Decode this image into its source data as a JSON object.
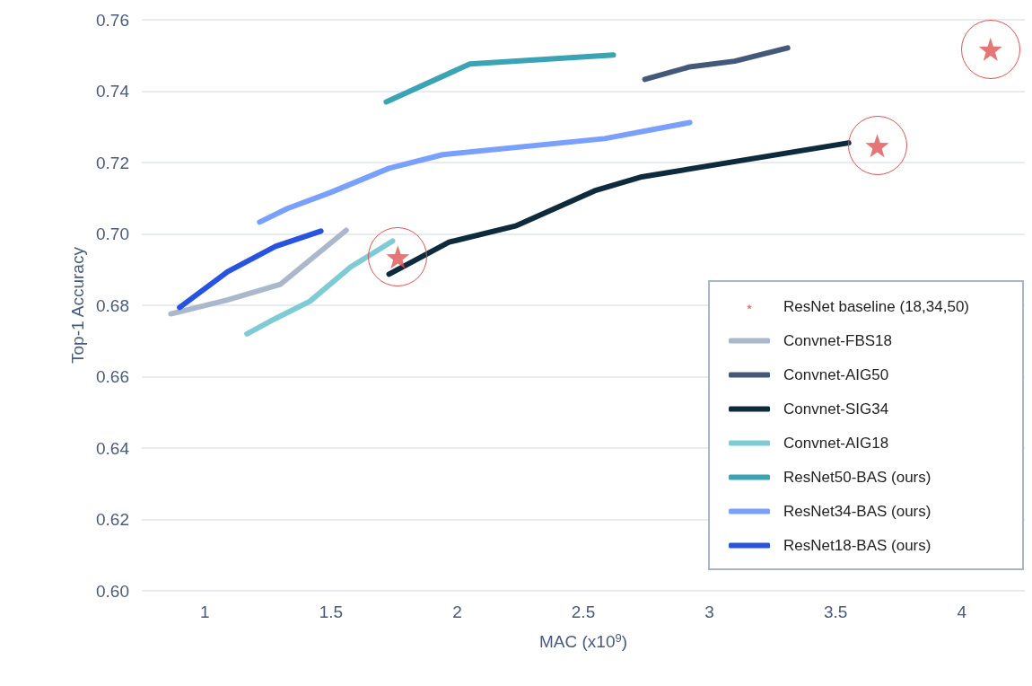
{
  "chart_data": {
    "type": "line",
    "xlabel": "MAC (x10$^{9}$)",
    "ylabel": "Top-1 Accuracy",
    "xlim": [
      0.75,
      4.25
    ],
    "xticks": [
      1,
      1.5,
      2,
      2.5,
      3,
      3.5,
      4
    ],
    "ylim": [
      0.6,
      0.76
    ],
    "yticks": [
      {
        "value": 0.6,
        "label": "0.60"
      },
      {
        "value": 0.62,
        "label": "0.62"
      },
      {
        "value": 0.64,
        "label": "0.64"
      },
      {
        "value": 0.66,
        "label": "0.66"
      },
      {
        "value": 0.68,
        "label": "0.68"
      },
      {
        "value": 0.7,
        "label": "0.70"
      },
      {
        "value": 0.72,
        "label": "0.72"
      },
      {
        "value": 0.74,
        "label": "0.74"
      },
      {
        "value": 0.76,
        "label": "0.76"
      }
    ],
    "grid": "y",
    "legend": "bottom right",
    "marker": "none",
    "line_style": "solid",
    "series": [
      {
        "name": "ResNet baseline (18,34,50)",
        "type": "scatter",
        "marker": "star",
        "color": "#e05252",
        "x": [
          1.765,
          3.665,
          4.114
        ],
        "values": [
          0.6935,
          0.7247,
          0.7517
        ]
      },
      {
        "name": "Convnet-FBS18",
        "color": "#abb8cc",
        "x": [
          0.865,
          1.085,
          1.3,
          1.56
        ],
        "values": [
          0.6776,
          0.6814,
          0.6859,
          0.701
        ]
      },
      {
        "name": "Convnet-AIG50",
        "color": "#44587a",
        "x": [
          2.744,
          2.922,
          3.1,
          3.31
        ],
        "values": [
          0.7433,
          0.7468,
          0.7484,
          0.7521
        ]
      },
      {
        "name": "Convnet-SIG34",
        "color": "#0e2a3d",
        "x": [
          1.73,
          1.968,
          2.235,
          2.545,
          2.726,
          3.552
        ],
        "values": [
          0.6887,
          0.6977,
          0.7023,
          0.7121,
          0.7159,
          0.7255
        ]
      },
      {
        "name": "Convnet-AIG18",
        "color": "#7fcbd4",
        "x": [
          1.167,
          1.28,
          1.416,
          1.577,
          1.744
        ],
        "values": [
          0.672,
          0.6763,
          0.6811,
          0.6907,
          0.698
        ]
      },
      {
        "name": "ResNet50-BAS (ours)",
        "color": "#3aa4b4",
        "x": [
          1.719,
          2.05,
          2.619
        ],
        "values": [
          0.737,
          0.7476,
          0.7501
        ]
      },
      {
        "name": "ResNet34-BAS (ours)",
        "color": "#7aa0fd",
        "x": [
          1.217,
          1.327,
          1.498,
          1.73,
          1.943,
          2.584,
          2.922
        ],
        "values": [
          0.7033,
          0.7071,
          0.7116,
          0.7184,
          0.7222,
          0.7267,
          0.7312
        ]
      },
      {
        "name": "ResNet18-BAS (ours)",
        "color": "#2853e0",
        "x": [
          0.9,
          1.09,
          1.28,
          1.46
        ],
        "values": [
          0.6794,
          0.6894,
          0.6965,
          0.7008
        ]
      }
    ]
  }
}
